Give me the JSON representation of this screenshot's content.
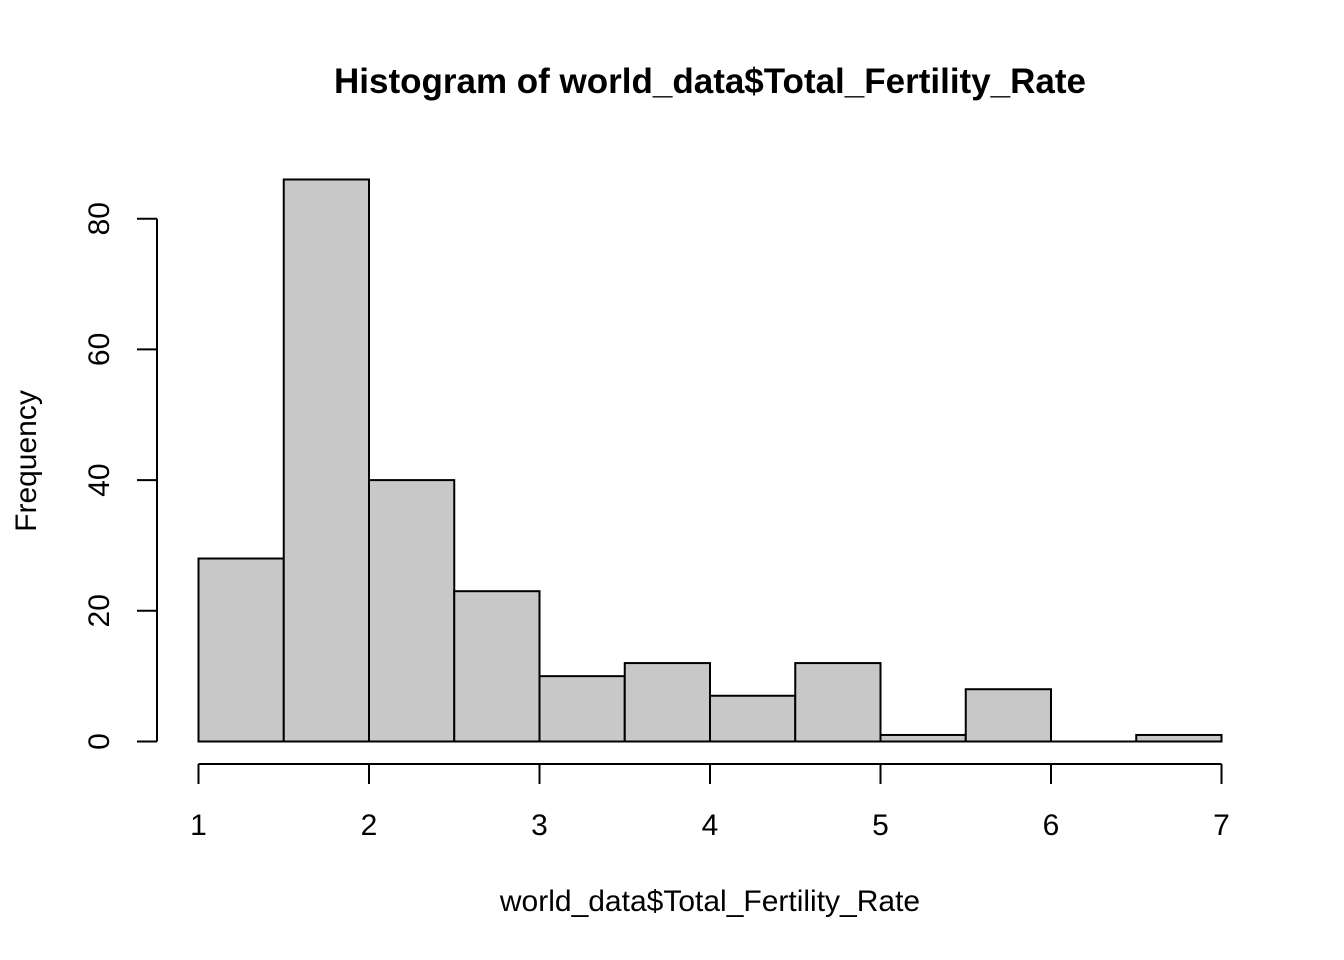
{
  "chart_data": {
    "type": "bar",
    "title": "Histogram of world_data$Total_Fertility_Rate",
    "xlabel": "world_data$Total_Fertility_Rate",
    "ylabel": "Frequency",
    "bins": [
      {
        "x0": 1.0,
        "x1": 1.5,
        "count": 28
      },
      {
        "x0": 1.5,
        "x1": 2.0,
        "count": 86
      },
      {
        "x0": 2.0,
        "x1": 2.5,
        "count": 40
      },
      {
        "x0": 2.5,
        "x1": 3.0,
        "count": 23
      },
      {
        "x0": 3.0,
        "x1": 3.5,
        "count": 10
      },
      {
        "x0": 3.5,
        "x1": 4.0,
        "count": 12
      },
      {
        "x0": 4.0,
        "x1": 4.5,
        "count": 7
      },
      {
        "x0": 4.5,
        "x1": 5.0,
        "count": 12
      },
      {
        "x0": 5.0,
        "x1": 5.5,
        "count": 1
      },
      {
        "x0": 5.5,
        "x1": 6.0,
        "count": 8
      },
      {
        "x0": 6.0,
        "x1": 6.5,
        "count": 0
      },
      {
        "x0": 6.5,
        "x1": 7.0,
        "count": 1
      }
    ],
    "xticks": [
      1,
      2,
      3,
      4,
      5,
      6,
      7
    ],
    "yticks": [
      0,
      20,
      40,
      60,
      80
    ],
    "xlim": [
      1,
      7
    ],
    "ylim": [
      0,
      86
    ],
    "grid": false,
    "bar_color": "#c8c8c8",
    "edge_color": "#000000"
  }
}
